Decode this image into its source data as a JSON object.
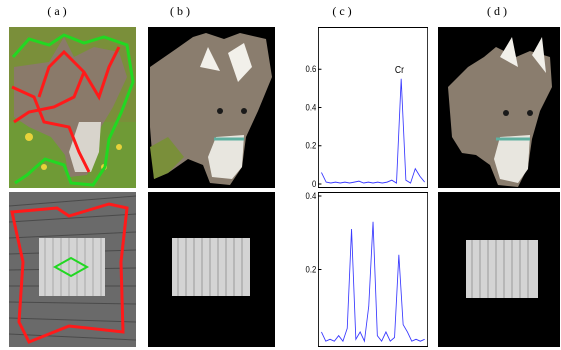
{
  "labels": {
    "a": "( a )",
    "b": "( b )",
    "c": "( c )",
    "d": "( d )"
  },
  "colors": {
    "red_stroke": "#ff1a1a",
    "green_stroke": "#22d822",
    "plot_line": "#3a3aff",
    "background": "#000000"
  },
  "chart_data": [
    {
      "type": "line",
      "title": "",
      "xlabel": "",
      "ylabel": "",
      "ylim": [
        0,
        0.8
      ],
      "yticks": [
        0,
        0.2,
        0.4,
        0.6
      ],
      "ytick_labels": [
        "0",
        "0.2",
        "0.4",
        "0.6"
      ],
      "annotations": [
        {
          "text": "Cr",
          "x": 17,
          "y": 0.55
        }
      ],
      "x": [
        0,
        1,
        2,
        3,
        4,
        5,
        6,
        7,
        8,
        9,
        10,
        11,
        12,
        13,
        14,
        15,
        16,
        17,
        18,
        19,
        20,
        21,
        22
      ],
      "values": [
        0.06,
        0.01,
        0.005,
        0.01,
        0.005,
        0.01,
        0.005,
        0.01,
        0.015,
        0.005,
        0.01,
        0.005,
        0.01,
        0.005,
        0.01,
        0.02,
        0.005,
        0.55,
        0.02,
        0.005,
        0.08,
        0.04,
        0.01
      ]
    },
    {
      "type": "line",
      "title": "",
      "xlabel": "",
      "ylabel": "",
      "ylim": [
        0,
        0.4
      ],
      "yticks": [
        0.2,
        0.4
      ],
      "ytick_labels": [
        "0.2",
        "0.4"
      ],
      "x": [
        0,
        1,
        2,
        3,
        4,
        5,
        6,
        7,
        8,
        9,
        10,
        11,
        12,
        13,
        14,
        15,
        16,
        17,
        18,
        19,
        20,
        21,
        22,
        23,
        24
      ],
      "values": [
        0.03,
        0.005,
        0.01,
        0.005,
        0.02,
        0.005,
        0.04,
        0.31,
        0.01,
        0.03,
        0.005,
        0.1,
        0.33,
        0.02,
        0.005,
        0.03,
        0.005,
        0.015,
        0.24,
        0.05,
        0.03,
        0.005,
        0.01,
        0.005,
        0.01
      ]
    }
  ]
}
